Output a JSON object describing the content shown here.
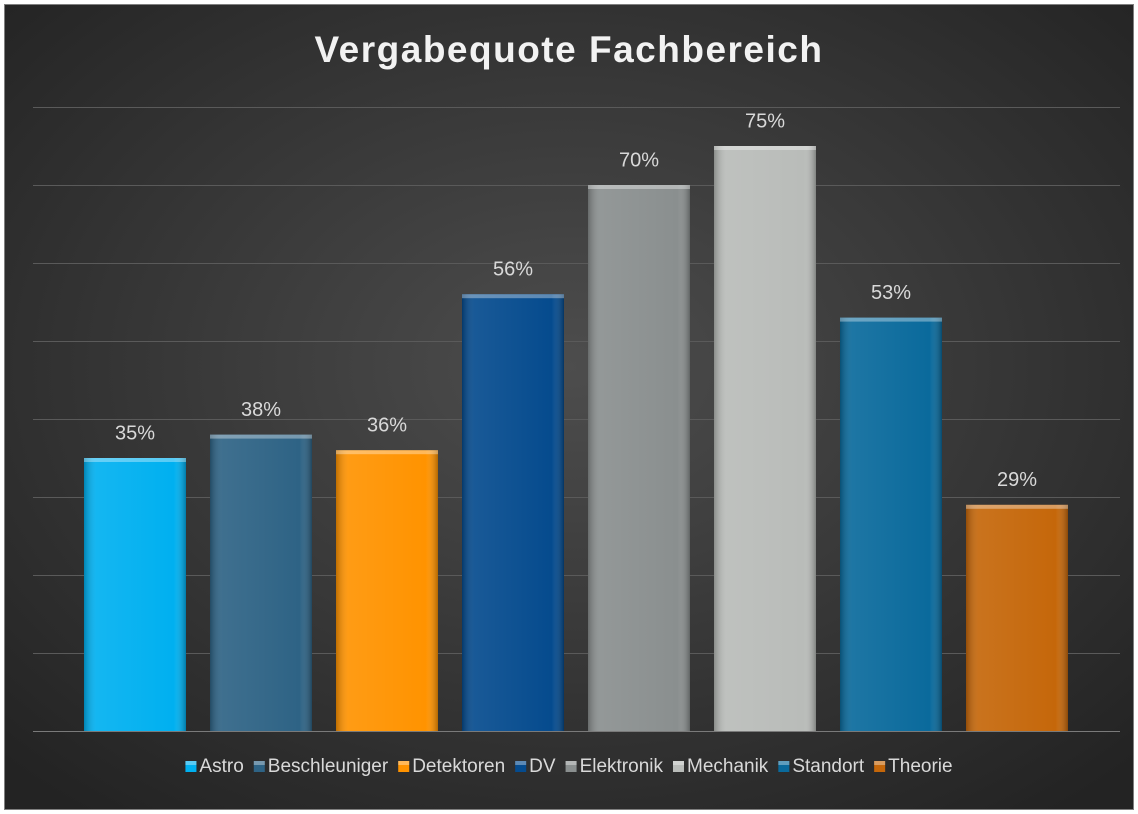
{
  "chart_data": {
    "type": "bar",
    "title": "Vergabequote Fachbereich",
    "categories": [
      "Astro",
      "Beschleuniger",
      "Detektoren",
      "DV",
      "Elektronik",
      "Mechanik",
      "Standort",
      "Theorie"
    ],
    "values": [
      35,
      38,
      36,
      56,
      70,
      75,
      53,
      29
    ],
    "value_labels": [
      "35%",
      "38%",
      "36%",
      "56%",
      "70%",
      "75%",
      "53%",
      "29%"
    ],
    "colors": [
      "#00b0f0",
      "#2e6385",
      "#ff9300",
      "#054b8e",
      "#8a8f8f",
      "#b9bcb9",
      "#0a6a9c",
      "#c5670a"
    ],
    "ylim": [
      0,
      80
    ],
    "yticks": [
      0,
      10,
      20,
      30,
      40,
      50,
      60,
      70,
      80
    ],
    "grid": true,
    "legend": "bottom"
  }
}
